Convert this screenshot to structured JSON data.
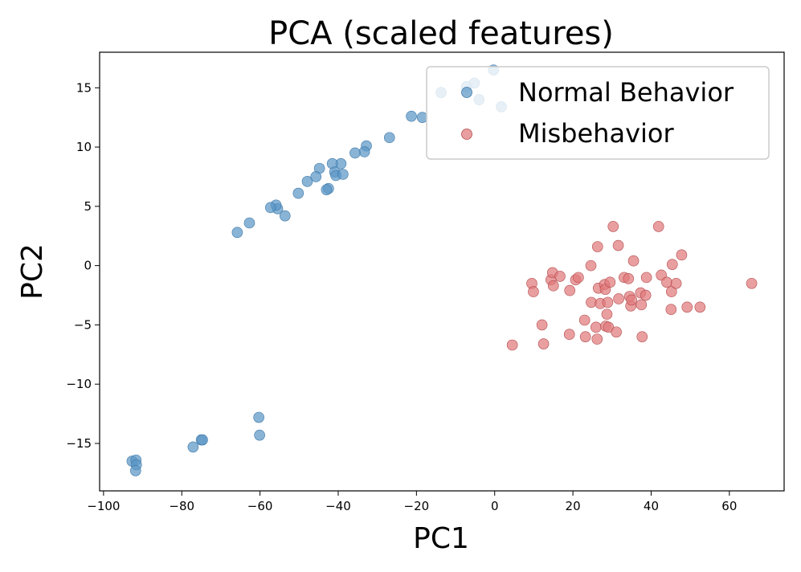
{
  "chart_data": {
    "type": "scatter",
    "title": "PCA (scaled features)",
    "xlabel": "PC1",
    "ylabel": "PC2",
    "xlim": [
      -101,
      74
    ],
    "ylim": [
      -19,
      18
    ],
    "xticks": [
      -100,
      -80,
      -60,
      -40,
      -20,
      0,
      20,
      40,
      60
    ],
    "yticks": [
      -15,
      -10,
      -5,
      0,
      5,
      10,
      15
    ],
    "xtick_labels": [
      "−100",
      "−80",
      "−60",
      "−40",
      "−20",
      "0",
      "20",
      "40",
      "60"
    ],
    "ytick_labels": [
      "−15",
      "−10",
      "−5",
      "0",
      "5",
      "10",
      "15"
    ],
    "grid": false,
    "legend_position": "top-right",
    "series": [
      {
        "name": "Normal Behavior",
        "color": "#5b97c6",
        "edge_color": "#3f78a8",
        "x": [
          -13.7,
          -7.2,
          -5.2,
          -4.0,
          -0.3,
          1.7,
          -21.3,
          -18.5,
          -26.9,
          -32.8,
          -33.3,
          -35.7,
          -39.3,
          -41.5,
          -40.9,
          -40.6,
          -38.8,
          -44.8,
          -45.7,
          -47.9,
          -42.5,
          -43.0,
          -50.2,
          -53.6,
          -55.5,
          -55.9,
          -57.3,
          -62.7,
          -65.8,
          -60.3,
          -60.1,
          -75.0,
          -74.7,
          -77.1,
          -92.7,
          -91.7,
          -91.6,
          -91.8
        ],
        "y": [
          14.6,
          15.1,
          15.4,
          14.0,
          16.5,
          13.4,
          12.6,
          12.5,
          10.8,
          10.1,
          9.6,
          9.5,
          8.6,
          8.6,
          7.9,
          7.6,
          7.7,
          8.2,
          7.5,
          7.1,
          6.5,
          6.4,
          6.1,
          4.2,
          4.8,
          5.1,
          4.9,
          3.6,
          2.8,
          -12.8,
          -14.3,
          -14.7,
          -14.7,
          -15.3,
          -16.5,
          -16.4,
          -16.8,
          -17.3
        ]
      },
      {
        "name": "Misbehavior",
        "color": "#e07a7c",
        "edge_color": "#b34a4c",
        "x": [
          4.5,
          9.5,
          9.9,
          12.1,
          12.5,
          14.4,
          14.8,
          15.0,
          16.7,
          19.1,
          19.2,
          20.7,
          21.4,
          23.0,
          23.2,
          24.6,
          24.7,
          25.9,
          26.2,
          26.3,
          26.5,
          27.0,
          28.1,
          28.3,
          28.4,
          28.7,
          28.9,
          29.1,
          29.5,
          30.3,
          31.1,
          31.6,
          31.7,
          33.1,
          34.2,
          34.5,
          34.8,
          35.0,
          35.5,
          37.3,
          37.5,
          37.7,
          38.6,
          38.8,
          41.9,
          42.6,
          44.0,
          45.1,
          45.2,
          45.4,
          46.4,
          47.8,
          49.2,
          52.5,
          65.7
        ],
        "y": [
          -6.7,
          -1.5,
          -2.2,
          -5.0,
          -6.6,
          -1.2,
          -0.6,
          -1.7,
          -0.9,
          -5.8,
          -2.1,
          -1.2,
          -1.0,
          -4.6,
          -6.0,
          0.0,
          -3.1,
          -5.2,
          -6.2,
          1.6,
          -1.9,
          -3.2,
          -1.6,
          -2.0,
          -5.1,
          -4.1,
          -3.1,
          -5.2,
          -1.4,
          3.3,
          -5.6,
          1.7,
          -2.8,
          -1.0,
          -1.1,
          -2.6,
          -3.4,
          -2.9,
          0.4,
          -2.3,
          -3.3,
          -6.0,
          -2.5,
          -1.0,
          3.3,
          -0.8,
          -1.4,
          -3.7,
          -2.2,
          0.1,
          -1.5,
          0.9,
          -3.5,
          -3.5,
          -1.5
        ]
      }
    ]
  }
}
